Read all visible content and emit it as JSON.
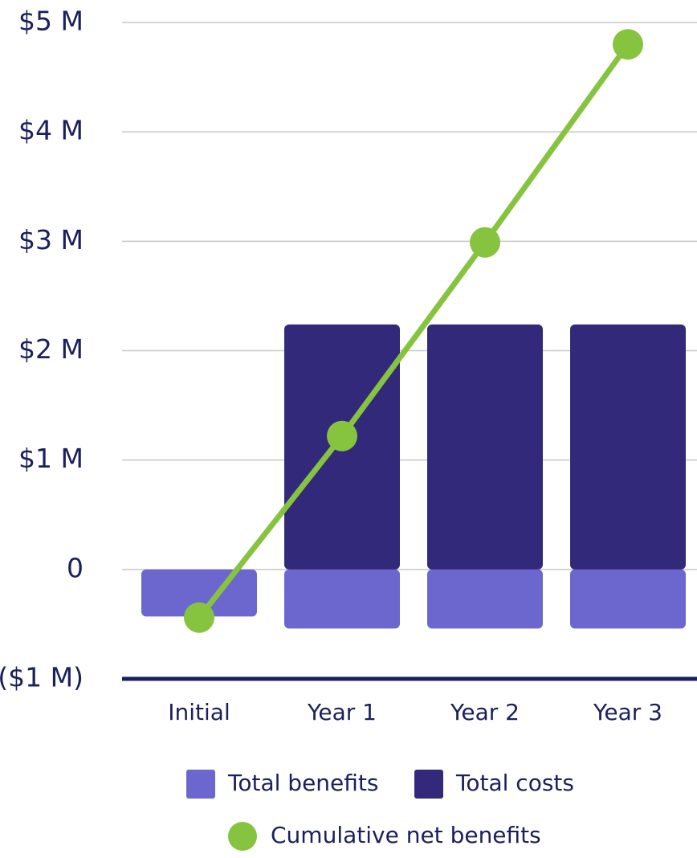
{
  "chart_data": {
    "type": "bar",
    "categories": [
      "Initial",
      "Year 1",
      "Year 2",
      "Year 3"
    ],
    "series": [
      {
        "name": "Total benefits",
        "color": "#6b67cf",
        "values": [
          -0.43,
          -0.54,
          -0.54,
          -0.54
        ]
      },
      {
        "name": "Total costs",
        "color": "#33297a",
        "values": [
          0,
          2.24,
          2.24,
          2.24
        ]
      },
      {
        "name": "Cumulative net benefits",
        "color": "#86c440",
        "type": "line",
        "values": [
          -0.44,
          1.22,
          2.99,
          4.8
        ]
      }
    ],
    "ylim": [
      -1,
      5
    ],
    "yticks": [
      {
        "value": -1,
        "label": "($1 M)"
      },
      0,
      {
        "value": 1,
        "label": "$1 M"
      },
      {
        "value": 2,
        "label": "$2 M"
      },
      {
        "value": 3,
        "label": "$3 M"
      },
      {
        "value": 4,
        "label": "$4 M"
      },
      {
        "value": 5,
        "label": "$5 M"
      }
    ],
    "grid": true
  }
}
